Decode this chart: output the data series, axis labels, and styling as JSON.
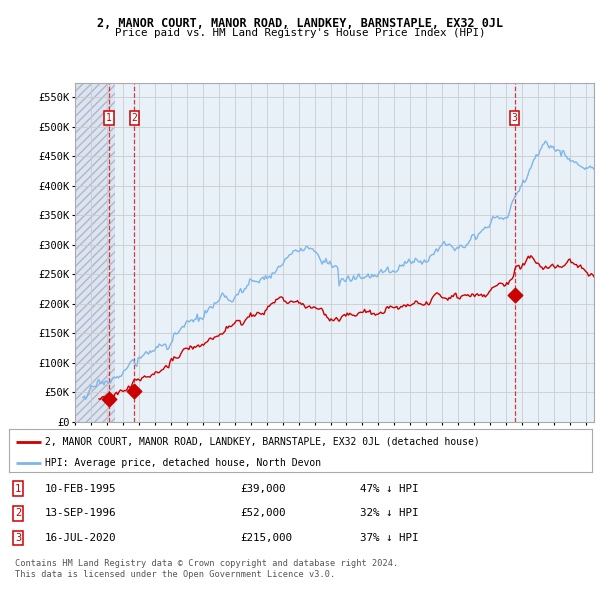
{
  "title": "2, MANOR COURT, MANOR ROAD, LANDKEY, BARNSTAPLE, EX32 0JL",
  "subtitle": "Price paid vs. HM Land Registry's House Price Index (HPI)",
  "legend_line1": "2, MANOR COURT, MANOR ROAD, LANDKEY, BARNSTAPLE, EX32 0JL (detached house)",
  "legend_line2": "HPI: Average price, detached house, North Devon",
  "footer1": "Contains HM Land Registry data © Crown copyright and database right 2024.",
  "footer2": "This data is licensed under the Open Government Licence v3.0.",
  "transactions": [
    {
      "num": 1,
      "date": "10-FEB-1995",
      "price": 39000,
      "pct": "47%",
      "dir": "↓",
      "year": 1995.12
    },
    {
      "num": 2,
      "date": "13-SEP-1996",
      "price": 52000,
      "pct": "32%",
      "dir": "↓",
      "year": 1996.71
    },
    {
      "num": 3,
      "date": "16-JUL-2020",
      "price": 215000,
      "pct": "37%",
      "dir": "↓",
      "year": 2020.54
    }
  ],
  "ylim": [
    0,
    575000
  ],
  "yticks": [
    0,
    50000,
    100000,
    150000,
    200000,
    250000,
    300000,
    350000,
    400000,
    450000,
    500000,
    550000
  ],
  "xlim_start": 1993.0,
  "xlim_end": 2025.5,
  "hpi_color": "#7eb6e8",
  "price_color": "#cc0000",
  "dashed_color": "#cc0000",
  "grid_color": "#cccccc",
  "hatch_bg": "#dde4ef",
  "blue_bg": "#e8f0f8"
}
